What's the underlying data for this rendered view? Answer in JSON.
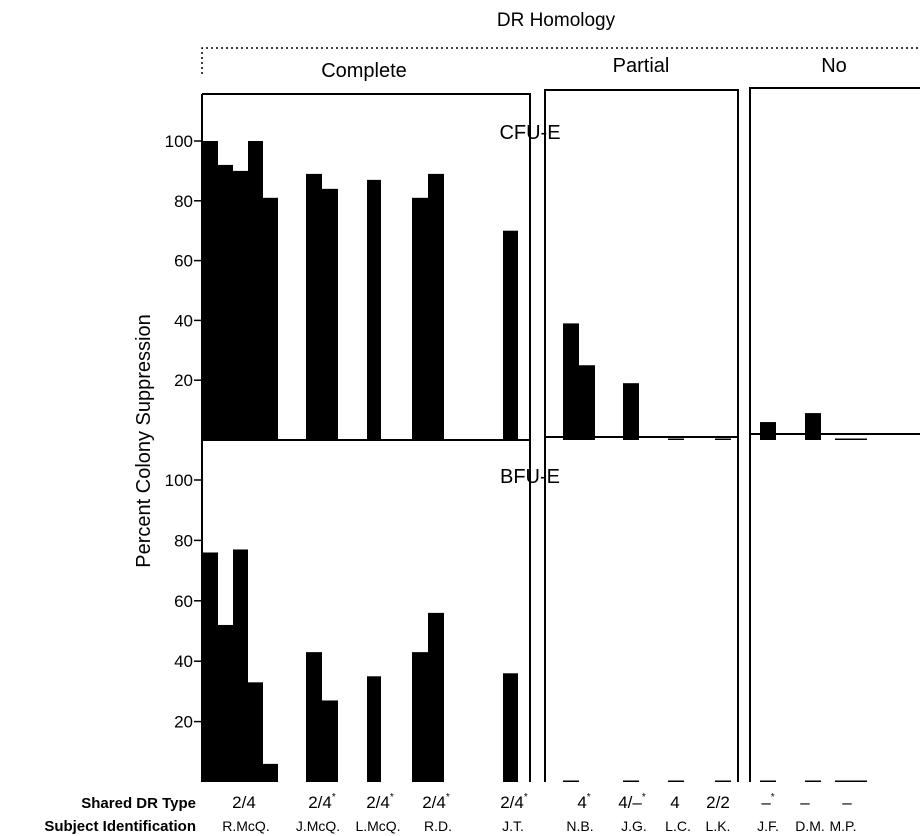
{
  "chart_data": {
    "type": "bar",
    "y_axis_label": "Percent  Colony  Suppression",
    "top_label": "DR Homology",
    "groups": [
      "Complete",
      "Partial",
      "No"
    ],
    "yticks": [
      "20",
      "40",
      "60",
      "80",
      "100"
    ],
    "ylim": [
      0,
      115
    ],
    "row_labels": {
      "dr_type": "Shared DR Type",
      "subject": "Subject Identification"
    },
    "panels": [
      {
        "name": "CFU-E",
        "bars": [
          {
            "subject": "R.McQ.",
            "values": [
              100,
              92,
              90,
              100,
              81
            ]
          },
          {
            "subject": "J.McQ.",
            "values": [
              89,
              84
            ]
          },
          {
            "subject": "L.McQ.",
            "values": [
              87
            ]
          },
          {
            "subject": "R.D.",
            "values": [
              81,
              89
            ]
          },
          {
            "subject": "J.T.",
            "values": [
              70
            ]
          },
          {
            "subject": "N.B.",
            "values": [
              39,
              25
            ]
          },
          {
            "subject": "J.G.",
            "values": [
              19
            ]
          },
          {
            "subject": "L.C.",
            "values": [
              0.5
            ]
          },
          {
            "subject": "L.K.",
            "values": [
              0.5
            ]
          },
          {
            "subject": "J.F.",
            "values": [
              6
            ]
          },
          {
            "subject": "D.M.",
            "values": [
              9
            ]
          },
          {
            "subject": "M.P.",
            "values": [
              0.5,
              0.5
            ]
          }
        ]
      },
      {
        "name": "BFU-E",
        "bars": [
          {
            "subject": "R.McQ.",
            "values": [
              76,
              52,
              77,
              33,
              6
            ]
          },
          {
            "subject": "J.McQ.",
            "values": [
              43,
              27
            ]
          },
          {
            "subject": "L.McQ.",
            "values": [
              35
            ]
          },
          {
            "subject": "R.D.",
            "values": [
              43,
              56
            ]
          },
          {
            "subject": "J.T.",
            "values": [
              36
            ]
          },
          {
            "subject": "N.B.",
            "values": [
              0.5
            ]
          },
          {
            "subject": "J.G.",
            "values": [
              0.5
            ]
          },
          {
            "subject": "L.C.",
            "values": [
              0.5
            ]
          },
          {
            "subject": "L.K.",
            "values": [
              0.5
            ]
          },
          {
            "subject": "J.F.",
            "values": [
              0.5
            ]
          },
          {
            "subject": "D.M.",
            "values": [
              0.5
            ]
          },
          {
            "subject": "M.P.",
            "values": [
              0.5,
              0.5
            ]
          }
        ]
      }
    ],
    "subjects": [
      {
        "id": "R.McQ.",
        "dr_type": "2/4",
        "group": "Complete"
      },
      {
        "id": "J.McQ.",
        "dr_type": "2/4",
        "mark": "*",
        "group": "Complete"
      },
      {
        "id": "L.McQ.",
        "dr_type": "2/4",
        "mark": "*",
        "group": "Complete"
      },
      {
        "id": "R.D.",
        "dr_type": "2/4",
        "mark": "*",
        "group": "Complete"
      },
      {
        "id": "J.T.",
        "dr_type": "2/4",
        "mark": "*",
        "group": "Complete"
      },
      {
        "id": "N.B.",
        "dr_type": "4",
        "mark": "*",
        "group": "Partial"
      },
      {
        "id": "J.G.",
        "dr_type": "4/–",
        "mark": "*",
        "group": "Partial"
      },
      {
        "id": "L.C.",
        "dr_type": "4",
        "group": "Partial"
      },
      {
        "id": "L.K.",
        "dr_type": "2/2",
        "group": "Partial"
      },
      {
        "id": "J.F.",
        "dr_type": "–",
        "mark": "*",
        "group": "No"
      },
      {
        "id": "D.M.",
        "dr_type": "–",
        "group": "No"
      },
      {
        "id": "M.P.",
        "dr_type": "–",
        "group": "No"
      }
    ]
  }
}
